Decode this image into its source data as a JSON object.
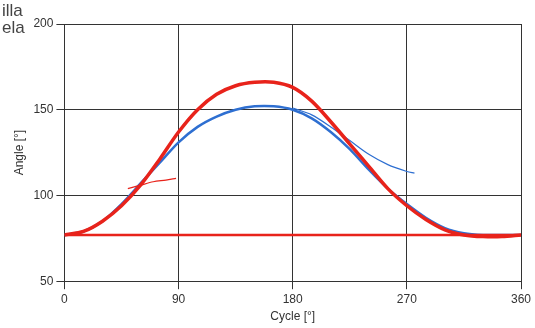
{
  "chart_data": {
    "type": "line",
    "annotations": [
      "illa",
      "ela"
    ],
    "xlabel": "Cycle [°]",
    "ylabel": "Angle [°]",
    "xlim": [
      0,
      360
    ],
    "xticks": [
      0,
      90,
      180,
      270,
      360
    ],
    "ylim": [
      50,
      200
    ],
    "yticks": [
      50,
      100,
      150,
      200
    ],
    "grid": true,
    "series": [
      {
        "color": "#e8231b",
        "line_style": "solid",
        "x": [
          0,
          15,
          30,
          45,
          60,
          75,
          90,
          105,
          120,
          135,
          150,
          165,
          180,
          195,
          210,
          225,
          240,
          255,
          270,
          285,
          300,
          315,
          330,
          345,
          360
        ],
        "values": [
          77,
          79,
          85,
          94,
          106,
          121,
          137,
          150,
          159,
          164,
          166,
          166,
          163,
          155,
          143,
          130,
          117,
          104,
          94,
          86,
          80,
          77,
          76,
          76,
          77
        ]
      },
      {
        "color": "#e8231b",
        "line_style": "solid",
        "x": [
          0,
          360
        ],
        "values": [
          77,
          77
        ]
      },
      {
        "color": "#e8231b",
        "line_style": "solid",
        "x": [
          50,
          60,
          70,
          80,
          88
        ],
        "values": [
          104,
          106,
          108,
          109,
          110
        ]
      },
      {
        "color": "#2e6fd1",
        "line_style": "solid",
        "x": [
          0,
          15,
          30,
          45,
          60,
          75,
          90,
          105,
          120,
          135,
          150,
          165,
          180,
          195,
          210,
          225,
          240,
          255,
          270,
          285,
          300,
          315,
          330,
          345,
          360
        ],
        "values": [
          77,
          79,
          85,
          95,
          107,
          119,
          131,
          140,
          146,
          150,
          152,
          152,
          150,
          145,
          137,
          127,
          115,
          104,
          95,
          87,
          81,
          78,
          77,
          77,
          77
        ]
      },
      {
        "color": "#2e6fd1",
        "line_style": "solid",
        "x": [
          180,
          195,
          210,
          225,
          240,
          255,
          270,
          276
        ],
        "values": [
          151,
          147,
          140,
          132,
          124,
          118,
          114,
          113
        ]
      }
    ]
  }
}
